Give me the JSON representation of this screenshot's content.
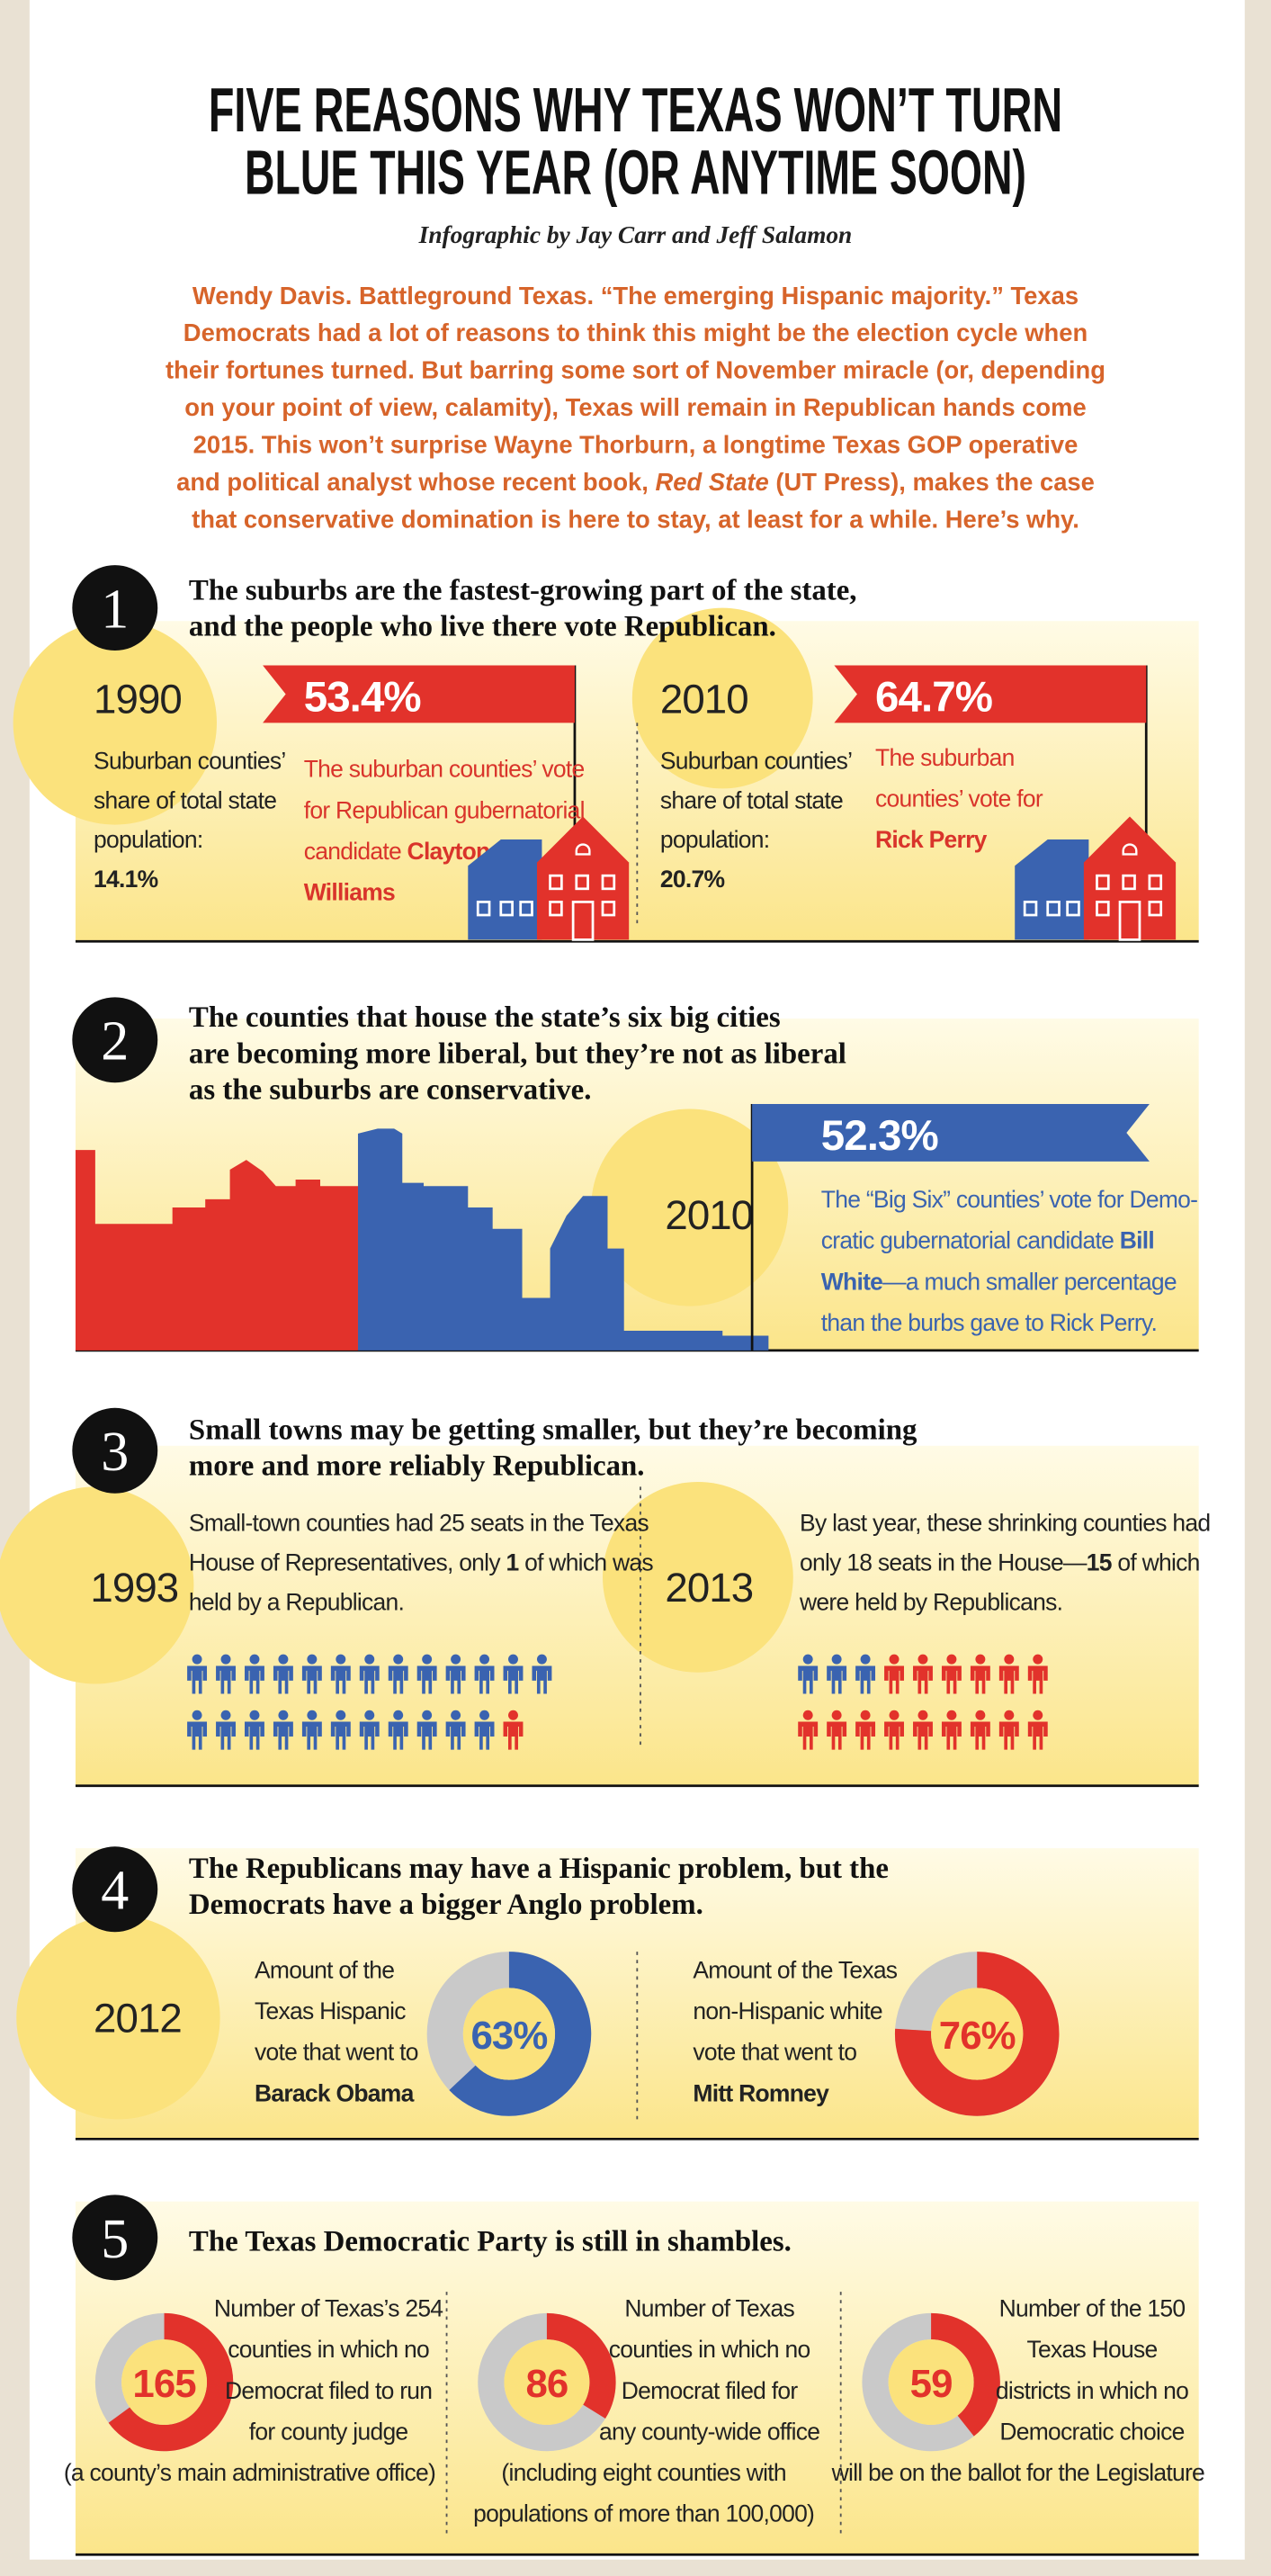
{
  "title": {
    "lines": [
      "FIVE REASONS WHY TEXAS WON’T TURN",
      "BLUE THIS YEAR (OR ANYTIME SOON)"
    ]
  },
  "byline": "Infographic by Jay Carr and Jeff Salamon",
  "intro": [
    "Wendy Davis. Battleground Texas. “The emerging Hispanic majority.” Texas",
    "Democrats had a lot of reasons to think this might be the election cycle when",
    "their fortunes turned. But barring some sort of November miracle (or, depending",
    "on your point of view, calamity), Texas will remain in Republican hands come",
    "2015. This won’t surprise Wayne Thorburn, a longtime Texas GOP operative",
    [
      "and political analyst whose recent book, ",
      "Red State",
      " (UT Press), makes the case"
    ],
    "that conservative domination is here to stay, at least for a while. Here’s why."
  ],
  "sections": [
    {
      "number": "1",
      "heading": [
        "The suburbs are the fastest-growing part of the state,",
        "and the people who live there vote Republican."
      ],
      "panels": [
        {
          "year": "1990",
          "share": [
            "Suburban counties’",
            "share of total state",
            "population:",
            [
              "",
              "14.1%"
            ]
          ],
          "flag": "53.4%",
          "vote": [
            "The suburban counties’ vote",
            "for Republican gubernatorial",
            [
              "candidate ",
              "Clayton"
            ],
            [
              "",
              "Williams"
            ]
          ]
        },
        {
          "year": "2010",
          "share": [
            "Suburban counties’",
            "share of total state",
            "population:",
            [
              "",
              "20.7%"
            ]
          ],
          "flag": "64.7%",
          "vote": [
            "The suburban",
            "counties’ vote for",
            [
              "",
              "Rick Perry"
            ]
          ]
        }
      ]
    },
    {
      "number": "2",
      "heading": [
        "The counties that house the state’s six big cities",
        "are becoming more liberal, but they’re not as liberal",
        "as the suburbs are conservative."
      ],
      "year": "2010",
      "flag": "52.3%",
      "vote": [
        "The “Big Six” counties’ vote for Demo-",
        [
          "cratic gubernatorial candidate ",
          "Bill"
        ],
        [
          "",
          "White",
          "—a much smaller percentage"
        ],
        "than the burbs gave to Rick Perry."
      ]
    },
    {
      "number": "3",
      "heading": [
        "Small towns may be getting smaller, but they’re becoming",
        " more and more reliably Republican."
      ],
      "panels": [
        {
          "year": "1993",
          "text": [
            "Small-town counties had 25 seats in the Texas",
            [
              "House of Representatives, only ",
              "1",
              " of which was"
            ],
            "held by a Republican."
          ],
          "seats": 25,
          "republican_seats": 1
        },
        {
          "year": "2013",
          "text": [
            "By last year, these shrinking counties had",
            [
              "only 18 seats in the House—",
              "15",
              " of which"
            ],
            "were held by Republicans."
          ],
          "seats": 18,
          "republican_seats": 15
        }
      ]
    },
    {
      "number": "4",
      "heading": [
        "The Republicans may have a Hispanic problem, but the",
        "Democrats have a bigger Anglo problem."
      ],
      "year": "2012",
      "panels": [
        {
          "text": [
            "Amount of the",
            "Texas Hispanic",
            "vote that went to",
            [
              "",
              "Barack Obama"
            ]
          ],
          "value": 63,
          "value_label": "63%",
          "color": "#3a63b0"
        },
        {
          "text": [
            "Amount of the Texas",
            "non-Hispanic white",
            "vote that went to",
            [
              "",
              "Mitt Romney"
            ]
          ],
          "value": 76,
          "value_label": "76%",
          "color": "#e2322b"
        }
      ]
    },
    {
      "number": "5",
      "heading": [
        "The Texas Democratic Party is still in shambles."
      ],
      "panels": [
        {
          "value": 165,
          "total": 254,
          "text": [
            "Number of Texas’s 254",
            "counties in which no",
            "Democrat filed to run",
            "for county judge"
          ],
          "note": [
            "(a county’s main administrative office)"
          ]
        },
        {
          "value": 86,
          "total": 254,
          "text": [
            "Number of Texas",
            "counties in which no",
            "Democrat filed for",
            "any county-wide office"
          ],
          "note": [
            "(including eight counties with",
            "populations of more than 100,000)"
          ]
        },
        {
          "value": 59,
          "total": 150,
          "text": [
            "Number of the 150",
            "Texas House",
            "districts in which no",
            "Democratic choice"
          ],
          "note": [
            "will be on the ballot for the Legislature"
          ]
        }
      ]
    }
  ]
}
